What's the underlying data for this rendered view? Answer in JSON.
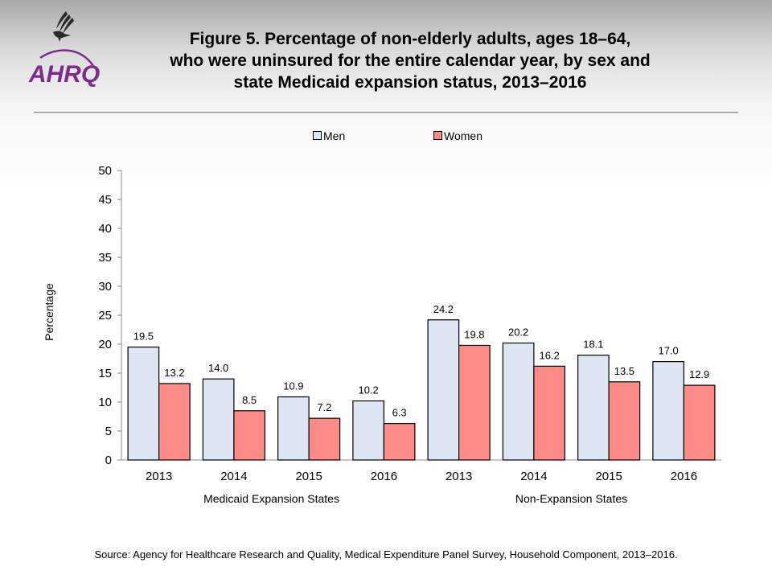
{
  "header": {
    "logo_text": "AHRQ",
    "title_lines": [
      "Figure 5. Percentage of non-elderly adults, ages 18–64,",
      "who were uninsured for the entire calendar year, by sex and",
      "state Medicaid expansion status, 2013–2016"
    ]
  },
  "colors": {
    "men": "#dde6f2",
    "women": "#ff8a8a",
    "logo_purple": "#7b2c8c"
  },
  "footer": {
    "source": "Source: Agency for Healthcare Research and Quality, Medical Expenditure Panel Survey, Household Component, 2013–2016."
  },
  "chart_data": {
    "type": "bar",
    "title": "Figure 5. Percentage of non-elderly adults, ages 18–64, who were uninsured for the entire calendar year, by sex and state Medicaid expansion status, 2013–2016",
    "xlabel": "",
    "ylabel": "Percentage",
    "ylim": [
      0,
      50
    ],
    "yticks": [
      0,
      5,
      10,
      15,
      20,
      25,
      30,
      35,
      40,
      45,
      50
    ],
    "grid": false,
    "legend_position": "top-center",
    "categories": [
      "2013",
      "2014",
      "2015",
      "2016",
      "2013",
      "2014",
      "2015",
      "2016"
    ],
    "groups": [
      {
        "label": "Medicaid Expansion States",
        "categories": [
          "2013",
          "2014",
          "2015",
          "2016"
        ]
      },
      {
        "label": "Non-Expansion States",
        "categories": [
          "2013",
          "2014",
          "2015",
          "2016"
        ]
      }
    ],
    "series": [
      {
        "name": "Men",
        "values": [
          19.5,
          14.0,
          10.9,
          10.2,
          24.2,
          20.2,
          18.1,
          17.0
        ]
      },
      {
        "name": "Women",
        "values": [
          13.2,
          8.5,
          7.2,
          6.3,
          19.8,
          16.2,
          13.5,
          12.9
        ]
      }
    ]
  }
}
